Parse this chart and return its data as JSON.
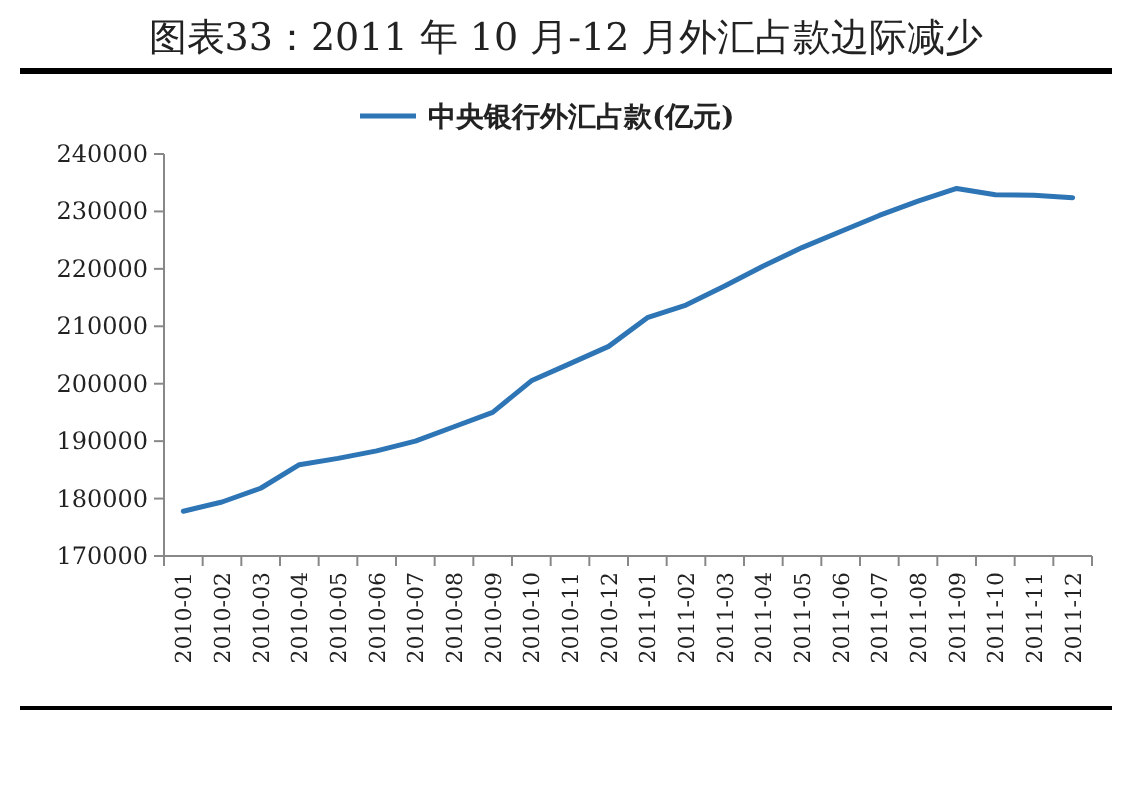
{
  "chart_data": {
    "type": "line",
    "title": "图表33：2011 年 10 月-12 月外汇占款边际减少",
    "categories": [
      "2010-01",
      "2010-02",
      "2010-03",
      "2010-04",
      "2010-05",
      "2010-06",
      "2010-07",
      "2010-08",
      "2010-09",
      "2010-10",
      "2010-11",
      "2010-12",
      "2011-01",
      "2011-02",
      "2011-03",
      "2011-04",
      "2011-05",
      "2011-06",
      "2011-07",
      "2011-08",
      "2011-09",
      "2011-10",
      "2011-11",
      "2011-12"
    ],
    "series": [
      {
        "name": "中央银行外汇占款(亿元)",
        "color": "#2e75b6",
        "values": [
          177800,
          179400,
          181800,
          185900,
          187000,
          188300,
          190000,
          192500,
          195000,
          200500,
          203500,
          206500,
          211500,
          213700,
          217000,
          220500,
          223700,
          226500,
          229300,
          231800,
          234000,
          232900,
          232800,
          232400
        ]
      }
    ],
    "ylim": [
      170000,
      240000
    ],
    "yticks": [
      170000,
      180000,
      190000,
      200000,
      210000,
      220000,
      230000,
      240000
    ],
    "legend": "top",
    "grid": false,
    "marker": "none",
    "line_style": "solid"
  }
}
